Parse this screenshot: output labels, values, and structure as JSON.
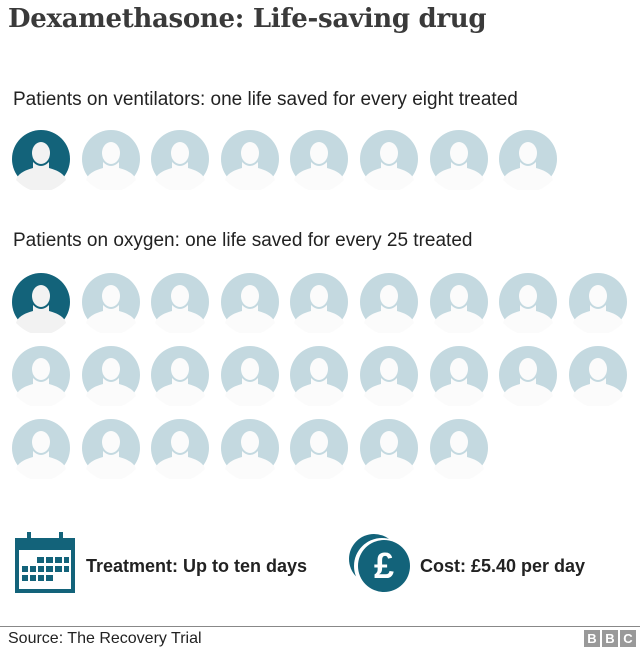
{
  "title": "Dexamethasone: Life-saving drug",
  "colors": {
    "saved": "#13637a",
    "treated": "#c4d9e0",
    "silhouette": "#f2f2f2"
  },
  "groups": [
    {
      "label": "Patients on ventilators: one life saved for every eight treated",
      "total": 8,
      "saved": 1
    },
    {
      "label": "Patients on oxygen: one life saved for every 25 treated",
      "total": 25,
      "saved": 1
    }
  ],
  "treatment": {
    "icon": "calendar-icon",
    "text": "Treatment: Up to ten days"
  },
  "cost": {
    "icon": "pound-coin-icon",
    "text": "Cost: £5.40 per day"
  },
  "footer": {
    "source": "Source: The Recovery Trial",
    "logo": "BBC"
  }
}
